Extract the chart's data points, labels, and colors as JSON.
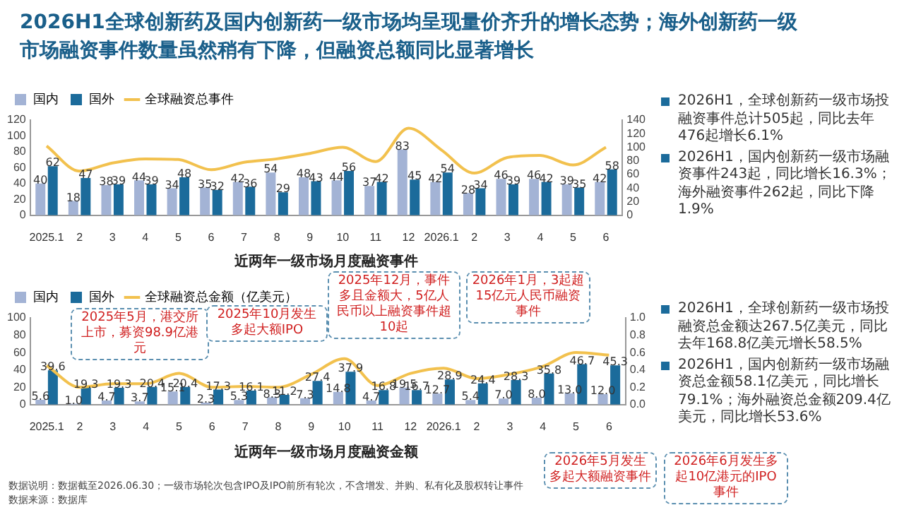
{
  "chart_data": [
    {
      "type": "bar",
      "title": "2026H1全球创新药及国内创新药一级市场均呈现量价齐升的增长态势；海外创新药一级市场融资事件数量虽然稍有下降，但融资总额同比显著增长",
      "xlabel": "近两年一级市场月度融资事件",
      "categories": [
        "2025.1",
        "2",
        "3",
        "4",
        "5",
        "6",
        "7",
        "8",
        "9",
        "10",
        "11",
        "12",
        "2026.1",
        "2",
        "3",
        "4",
        "5",
        "6"
      ],
      "series": [
        {
          "name": "国内",
          "color": "#a3b3d5",
          "values": [
            40,
            18,
            38,
            44,
            34,
            35,
            42,
            54,
            48,
            44,
            37,
            83,
            42,
            28,
            46,
            46,
            39,
            42
          ],
          "value_labels": [
            "40",
            "18",
            "38",
            "44",
            "34",
            "35",
            "42",
            "54",
            "48",
            "44",
            "37",
            "83",
            "42",
            "28",
            "46",
            "46",
            "39",
            "42"
          ]
        },
        {
          "name": "国外",
          "color": "#1b6b9b",
          "values": [
            62,
            47,
            39,
            39,
            48,
            32,
            36,
            29,
            43,
            56,
            42,
            45,
            54,
            34,
            39,
            42,
            35,
            58
          ],
          "value_labels": [
            "62",
            "47",
            "39",
            "39",
            "48",
            "32",
            "36",
            "29",
            "43",
            "56",
            "42",
            "45",
            "54",
            "34",
            "39",
            "42",
            "35",
            "58"
          ]
        },
        {
          "name": "全球融资总事件",
          "type": "line",
          "axis": "y2",
          "color": "#f2c14e",
          "values": [
            102,
            65,
            77,
            83,
            82,
            67,
            78,
            83,
            91,
            100,
            79,
            128,
            96,
            62,
            85,
            88,
            74,
            100
          ]
        }
      ],
      "ylim": [
        0,
        120
      ],
      "yticks": [
        0,
        20,
        40,
        60,
        80,
        100,
        120
      ],
      "y2lim": [
        0,
        140
      ],
      "y2ticks": [
        0,
        20,
        40,
        60,
        80,
        100,
        120,
        140
      ],
      "grid": false,
      "legend": "top left",
      "marker": "none",
      "annotations": [
        "2026H1，全球创新药一级市场投融资事件总计505起，同比去年476起增长6.1%",
        "2026H1，国内创新药一级市场融资事件243起，同比增长16.3%；海外融资事件262起，同比下降1.9%"
      ]
    },
    {
      "type": "bar",
      "xlabel": "近两年一级市场月度融资金额",
      "categories": [
        "2025.1",
        "2",
        "3",
        "4",
        "5",
        "6",
        "7",
        "8",
        "9",
        "10",
        "11",
        "12",
        "2026.1",
        "2",
        "3",
        "4",
        "5",
        "6"
      ],
      "series": [
        {
          "name": "国内",
          "color": "#a3b3d5",
          "values": [
            5.6,
            1.0,
            4.7,
            3.7,
            15.1,
            2.3,
            5.3,
            8.3,
            7.3,
            14.8,
            4.7,
            19.5,
            12.7,
            5.4,
            7.0,
            8.0,
            13.0,
            12.0
          ],
          "value_labels": [
            "5.6",
            "1.0",
            "4.7",
            "3.7",
            "15.1",
            "2.3",
            "5.3",
            "8.3",
            "7.3",
            "14.8",
            "4.7",
            "19.5",
            "12.7",
            "5.4",
            "7.0",
            "8.0",
            "13.0",
            "12.0"
          ]
        },
        {
          "name": "国外",
          "color": "#1b6b9b",
          "values": [
            39.6,
            19.3,
            19.3,
            20.4,
            20.4,
            17.3,
            16.1,
            11.2,
            27.4,
            37.9,
            16.8,
            16.7,
            28.9,
            24.4,
            28.3,
            35.8,
            46.7,
            45.3
          ],
          "value_labels": [
            "39.6",
            "19.3",
            "19.3",
            "20.4",
            "20.4",
            "17.3",
            "16.1",
            "11.2",
            "27.4",
            "37.9",
            "16.8",
            "16.7",
            "28.9",
            "24.4",
            "28.3",
            "35.8",
            "46.7",
            "45.3"
          ]
        },
        {
          "name": "全球融资总金额（亿美元）",
          "type": "line",
          "axis": "y2",
          "color": "#f2c14e",
          "values": [
            0.45,
            0.2,
            0.24,
            0.24,
            0.36,
            0.2,
            0.21,
            0.2,
            0.35,
            0.53,
            0.22,
            0.36,
            0.42,
            0.3,
            0.35,
            0.44,
            0.6,
            0.57
          ]
        }
      ],
      "ylim": [
        0,
        100
      ],
      "yticks": [
        0,
        20,
        40,
        60,
        80,
        100
      ],
      "y2lim": [
        0,
        1
      ],
      "y2ticks": [
        {
          "value": 0,
          "label": "0.0"
        },
        {
          "value": 0.2,
          "label": "0.2"
        },
        {
          "value": 0.4,
          "label": "0.4"
        },
        {
          "value": 0.6,
          "label": "0.6"
        },
        {
          "value": 0.8,
          "label": "0.8"
        },
        {
          "value": 1,
          "label": "1.0"
        }
      ],
      "grid": false,
      "legend": "top left",
      "marker": "none",
      "annotations": [
        "2025年5月，港交所上市，募资98.9亿港元",
        "2025年10月发生多起大额IPO",
        "2025年12月，事件多且金额大，5亿人民币以上融资事件超10起",
        "2026年1月，3起超15亿元人民币融资事件",
        "2026年5月发生多起大额融资事件",
        "2026年6月发生多起10亿港元的IPO事件",
        "2026H1，全球创新药一级市场投融资总金额达267.5亿美元，同比去年168.8亿美元增长58.5%",
        "2026H1，国内创新药一级市场融资总金额58.1亿美元，同比增长79.1%；海外融资总金额209.4亿美元，同比增长53.6%",
        "数据说明：数据截至2026.06.30；一级市场轮次包含IPO及IPO前所有轮次，不含增发、并购、私有化及股权转让事件",
        "数据来源：数据库"
      ]
    }
  ]
}
